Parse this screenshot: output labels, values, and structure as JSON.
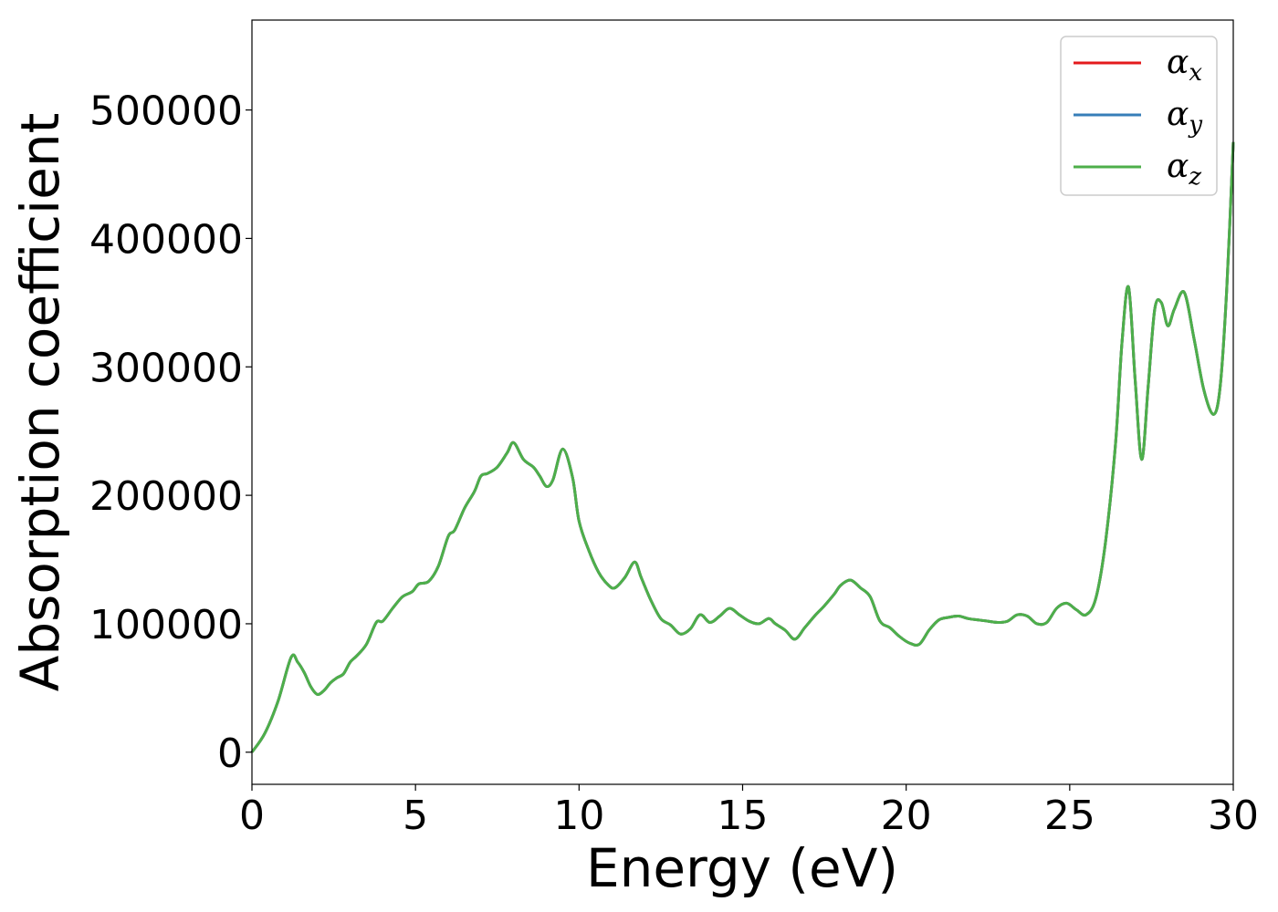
{
  "chart_data": {
    "type": "line",
    "title": "",
    "xlabel": "Energy (eV)",
    "ylabel": "Absorption coefficient",
    "xlim": [
      0,
      30
    ],
    "ylim": [
      -25000,
      570000
    ],
    "xticks": [
      0,
      5,
      10,
      15,
      20,
      25,
      30
    ],
    "yticks": [
      0,
      100000,
      200000,
      300000,
      400000,
      500000
    ],
    "grid": false,
    "legend": {
      "placement": "top-right"
    },
    "x": [
      0,
      0.4,
      0.8,
      1.2,
      1.4,
      1.6,
      1.8,
      2.0,
      2.2,
      2.4,
      2.6,
      2.8,
      3.0,
      3.2,
      3.5,
      3.8,
      4.0,
      4.3,
      4.6,
      4.9,
      5.1,
      5.4,
      5.7,
      6.0,
      6.2,
      6.5,
      6.8,
      7.0,
      7.2,
      7.5,
      7.8,
      8.0,
      8.3,
      8.6,
      8.8,
      9.0,
      9.2,
      9.5,
      9.8,
      10.0,
      10.3,
      10.6,
      10.9,
      11.1,
      11.4,
      11.7,
      11.9,
      12.2,
      12.5,
      12.8,
      13.1,
      13.4,
      13.7,
      14.0,
      14.3,
      14.6,
      14.9,
      15.2,
      15.5,
      15.8,
      16.0,
      16.3,
      16.6,
      16.9,
      17.2,
      17.5,
      17.8,
      18.0,
      18.3,
      18.6,
      18.9,
      19.2,
      19.5,
      19.8,
      20.1,
      20.4,
      20.7,
      21.0,
      21.3,
      21.6,
      21.9,
      22.2,
      22.5,
      22.8,
      23.1,
      23.4,
      23.7,
      24.0,
      24.3,
      24.6,
      24.9,
      25.2,
      25.5,
      25.8,
      26.1,
      26.4,
      26.6,
      26.8,
      27.0,
      27.2,
      27.4,
      27.6,
      27.8,
      28.0,
      28.2,
      28.5,
      28.8,
      29.1,
      29.4,
      29.6,
      29.8,
      30.0
    ],
    "series": [
      {
        "name": "x",
        "color": "#e41a1c",
        "values": [
          0,
          15000,
          40000,
          74000,
          70000,
          62000,
          51000,
          45000,
          48000,
          54000,
          58000,
          61000,
          70000,
          75000,
          84000,
          101000,
          102000,
          112000,
          121000,
          125000,
          131000,
          133000,
          145000,
          168000,
          173000,
          190000,
          203000,
          215000,
          217000,
          222000,
          233000,
          241000,
          228000,
          222000,
          215000,
          207000,
          212000,
          236000,
          214000,
          180000,
          157000,
          140000,
          130000,
          128000,
          136000,
          148000,
          136000,
          118000,
          104000,
          99000,
          92000,
          96000,
          107000,
          101000,
          106000,
          112000,
          107000,
          102000,
          100000,
          104000,
          100000,
          95000,
          88000,
          97000,
          106000,
          114000,
          123000,
          130000,
          134000,
          128000,
          121000,
          102000,
          97000,
          90000,
          85000,
          84000,
          95000,
          103000,
          105000,
          106000,
          104000,
          103000,
          102000,
          101000,
          102000,
          107000,
          106000,
          100000,
          101000,
          112000,
          116000,
          111000,
          107000,
          120000,
          165000,
          240000,
          320000,
          362000,
          290000,
          228000,
          285000,
          345000,
          350000,
          332000,
          345000,
          358000,
          322000,
          282000,
          263000,
          285000,
          360000,
          475000
        ]
      },
      {
        "name": "y",
        "color": "#377eb8",
        "values": [
          0,
          15000,
          40000,
          74000,
          70000,
          62000,
          51000,
          45000,
          48000,
          54000,
          58000,
          61000,
          70000,
          75000,
          84000,
          101000,
          102000,
          112000,
          121000,
          125000,
          131000,
          133000,
          145000,
          168000,
          173000,
          190000,
          203000,
          215000,
          217000,
          222000,
          233000,
          241000,
          228000,
          222000,
          215000,
          207000,
          212000,
          236000,
          214000,
          180000,
          157000,
          140000,
          130000,
          128000,
          136000,
          148000,
          136000,
          118000,
          104000,
          99000,
          92000,
          96000,
          107000,
          101000,
          106000,
          112000,
          107000,
          102000,
          100000,
          104000,
          100000,
          95000,
          88000,
          97000,
          106000,
          114000,
          123000,
          130000,
          134000,
          128000,
          121000,
          102000,
          97000,
          90000,
          85000,
          84000,
          95000,
          103000,
          105000,
          106000,
          104000,
          103000,
          102000,
          101000,
          102000,
          107000,
          106000,
          100000,
          101000,
          112000,
          116000,
          111000,
          107000,
          120000,
          165000,
          240000,
          320000,
          362000,
          290000,
          228000,
          285000,
          345000,
          350000,
          332000,
          345000,
          358000,
          322000,
          282000,
          263000,
          285000,
          360000,
          475000
        ]
      },
      {
        "name": "z",
        "color": "#4daf4a",
        "values": [
          0,
          15000,
          40000,
          74000,
          70000,
          62000,
          51000,
          45000,
          48000,
          54000,
          58000,
          61000,
          70000,
          75000,
          84000,
          101000,
          102000,
          112000,
          121000,
          125000,
          131000,
          133000,
          145000,
          168000,
          173000,
          190000,
          203000,
          215000,
          217000,
          222000,
          233000,
          241000,
          228000,
          222000,
          215000,
          207000,
          212000,
          236000,
          214000,
          180000,
          157000,
          140000,
          130000,
          128000,
          136000,
          148000,
          136000,
          118000,
          104000,
          99000,
          92000,
          96000,
          107000,
          101000,
          106000,
          112000,
          107000,
          102000,
          100000,
          104000,
          100000,
          95000,
          88000,
          97000,
          106000,
          114000,
          123000,
          130000,
          134000,
          128000,
          121000,
          102000,
          97000,
          90000,
          85000,
          84000,
          95000,
          103000,
          105000,
          106000,
          104000,
          103000,
          102000,
          101000,
          102000,
          107000,
          106000,
          100000,
          101000,
          112000,
          116000,
          111000,
          107000,
          120000,
          165000,
          240000,
          320000,
          362000,
          290000,
          228000,
          285000,
          345000,
          350000,
          332000,
          345000,
          358000,
          322000,
          282000,
          263000,
          285000,
          360000,
          475000
        ]
      }
    ]
  }
}
